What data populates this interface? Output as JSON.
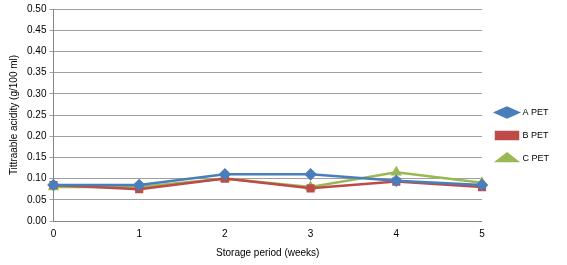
{
  "chart_data": {
    "type": "line",
    "x_label": "Storage period (weeks)",
    "y_label": "Tittraable acidity (g/100 ml)",
    "categories": [
      "0",
      "1",
      "2",
      "3",
      "4",
      "5"
    ],
    "series": [
      {
        "name": "A PET",
        "color": "#4a7ebb",
        "marker": "diamond",
        "values": [
          0.085,
          0.085,
          0.11,
          0.11,
          0.095,
          0.085
        ]
      },
      {
        "name": "B PET",
        "color": "#be4b48",
        "marker": "square",
        "values": [
          0.085,
          0.075,
          0.1,
          0.077,
          0.093,
          0.08
        ]
      },
      {
        "name": "C PET",
        "color": "#98b954",
        "marker": "triangle",
        "values": [
          0.08,
          0.08,
          0.1,
          0.08,
          0.115,
          0.09
        ]
      }
    ],
    "ylim": [
      0,
      0.5
    ],
    "yticks": [
      {
        "value": 0,
        "label": "0.00"
      },
      0.05,
      {
        "value": 0.1,
        "label": "0.10"
      },
      0.15,
      {
        "value": 0.2,
        "label": "0.20"
      },
      0.25,
      {
        "value": 0.3,
        "label": "0.30"
      },
      0.35,
      {
        "value": 0.4,
        "label": "0.40"
      },
      0.45,
      {
        "value": 0.5,
        "label": "0.50"
      }
    ],
    "grid": "y",
    "legend": "right"
  }
}
